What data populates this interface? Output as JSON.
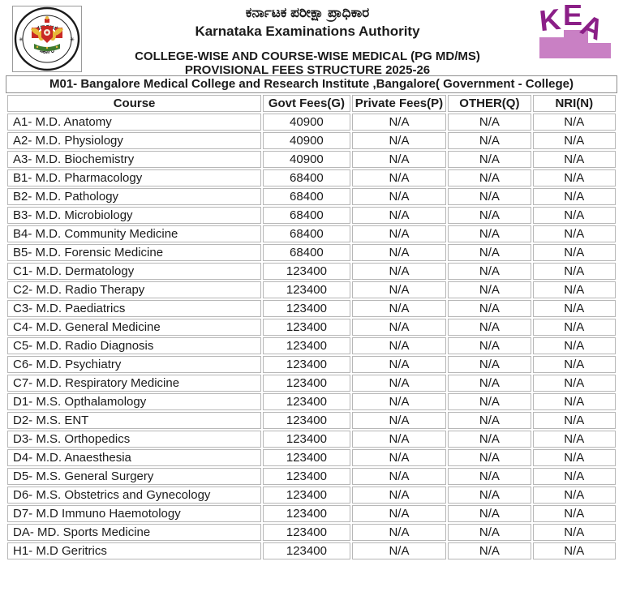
{
  "header": {
    "authority_kannada": "ಕರ್ನಾಟಕ ಪರೀಕ್ಷಾ ಪ್ರಾಧಿಕಾರ",
    "authority_english": "Karnataka Examinations Authority",
    "doc_title_line1": "COLLEGE-WISE AND COURSE-WISE MEDICAL  (PG MD/MS)",
    "doc_title_line2": "PROVISIONAL FEES STRUCTURE 2025-26",
    "emblem": {
      "top_text": "ಕರ್ನಾಟಕ",
      "bottom_text": "ಸರ್ಕಾರ"
    },
    "kea_logo": {
      "letter_k": "K",
      "letter_e": "E",
      "letter_a": "A",
      "letter_color": "#8B1F87",
      "podium_color": "#C980C4"
    }
  },
  "college_bar": {
    "title": "M01- Bangalore Medical College and Research Institute ,Bangalore( Government - College)"
  },
  "table": {
    "columns": [
      "Course",
      "Govt Fees(G)",
      "Private Fees(P)",
      "OTHER(Q)",
      "NRI(N)"
    ],
    "column_keys": [
      "course",
      "govt-fees",
      "private-fees",
      "other",
      "nri"
    ],
    "rows": [
      [
        "A1- M.D. Anatomy",
        "40900",
        "N/A",
        "N/A",
        "N/A"
      ],
      [
        "A2- M.D. Physiology",
        "40900",
        "N/A",
        "N/A",
        "N/A"
      ],
      [
        "A3- M.D. Biochemistry",
        "40900",
        "N/A",
        "N/A",
        "N/A"
      ],
      [
        "B1- M.D. Pharmacology",
        "68400",
        "N/A",
        "N/A",
        "N/A"
      ],
      [
        "B2- M.D. Pathology",
        "68400",
        "N/A",
        "N/A",
        "N/A"
      ],
      [
        "B3- M.D. Microbiology",
        "68400",
        "N/A",
        "N/A",
        "N/A"
      ],
      [
        "B4- M.D. Community Medicine",
        "68400",
        "N/A",
        "N/A",
        "N/A"
      ],
      [
        "B5- M.D. Forensic Medicine",
        "68400",
        "N/A",
        "N/A",
        "N/A"
      ],
      [
        "C1- M.D. Dermatology",
        "123400",
        "N/A",
        "N/A",
        "N/A"
      ],
      [
        "C2- M.D. Radio Therapy",
        "123400",
        "N/A",
        "N/A",
        "N/A"
      ],
      [
        "C3- M.D. Paediatrics",
        "123400",
        "N/A",
        "N/A",
        "N/A"
      ],
      [
        "C4- M.D. General Medicine",
        "123400",
        "N/A",
        "N/A",
        "N/A"
      ],
      [
        "C5- M.D. Radio Diagnosis",
        "123400",
        "N/A",
        "N/A",
        "N/A"
      ],
      [
        "C6- M.D. Psychiatry",
        "123400",
        "N/A",
        "N/A",
        "N/A"
      ],
      [
        "C7- M.D. Respiratory Medicine",
        "123400",
        "N/A",
        "N/A",
        "N/A"
      ],
      [
        "D1- M.S. Opthalamology",
        "123400",
        "N/A",
        "N/A",
        "N/A"
      ],
      [
        "D2- M.S. ENT",
        "123400",
        "N/A",
        "N/A",
        "N/A"
      ],
      [
        "D3- M.S. Orthopedics",
        "123400",
        "N/A",
        "N/A",
        "N/A"
      ],
      [
        "D4- M.D. Anaesthesia",
        "123400",
        "N/A",
        "N/A",
        "N/A"
      ],
      [
        "D5- M.S. General Surgery",
        "123400",
        "N/A",
        "N/A",
        "N/A"
      ],
      [
        "D6- M.S. Obstetrics and Gynecology",
        "123400",
        "N/A",
        "N/A",
        "N/A"
      ],
      [
        "D7- M.D Immuno Haemotology",
        "123400",
        "N/A",
        "N/A",
        "N/A"
      ],
      [
        "DA- MD. Sports Medicine",
        "123400",
        "N/A",
        "N/A",
        "N/A"
      ],
      [
        "H1- M.D Geritrics",
        "123400",
        "N/A",
        "N/A",
        "N/A"
      ]
    ]
  }
}
